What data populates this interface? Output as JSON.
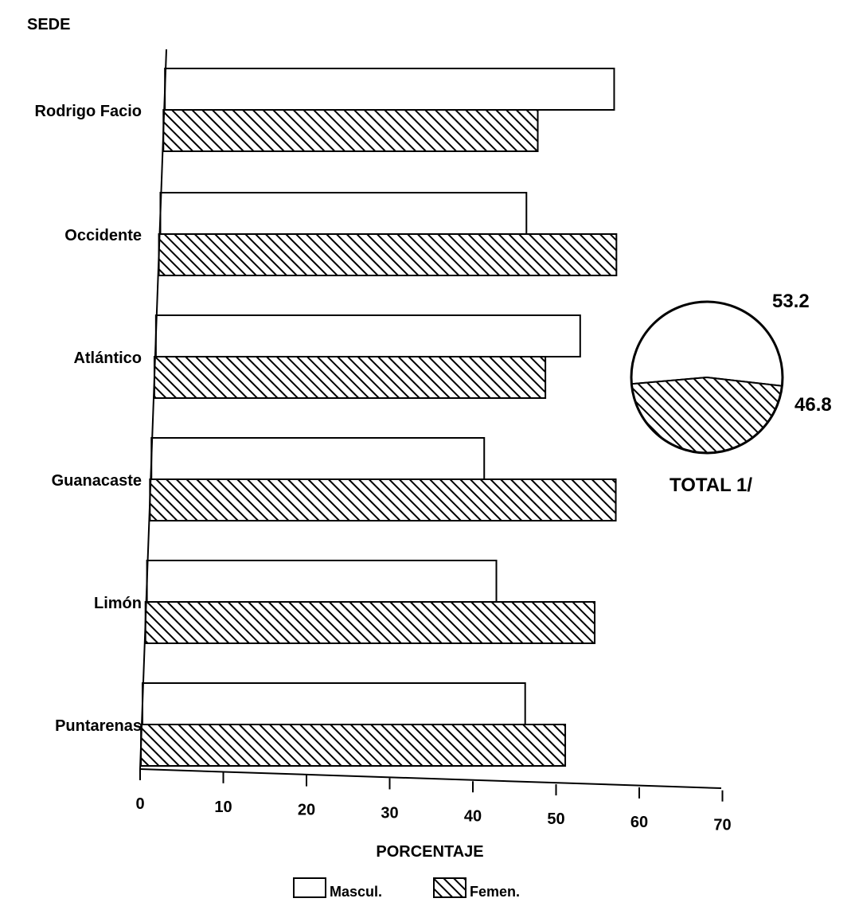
{
  "chart_data": [
    {
      "type": "bar",
      "orientation": "horizontal",
      "ylabel": "SEDE",
      "xlabel": "PORCENTAJE",
      "categories": [
        "Rodrigo Facio",
        "Occidente",
        "Atlántico",
        "Guanacaste",
        "Limón",
        "Puntarenas"
      ],
      "series": [
        {
          "name": "Mascul.",
          "values": [
            54,
            44,
            51,
            40,
            42,
            46
          ],
          "fill": "white"
        },
        {
          "name": "Femen.",
          "values": [
            45,
            55,
            47,
            56,
            54,
            51
          ],
          "fill": "hatch"
        }
      ],
      "xlim": [
        0,
        70
      ],
      "xticks": [
        0,
        10,
        20,
        30,
        40,
        50,
        60,
        70
      ],
      "grid": false,
      "legend": "bottom"
    },
    {
      "type": "pie",
      "title": "TOTAL 1/",
      "slices": [
        {
          "label": "53.2",
          "value": 53.2,
          "fill": "white"
        },
        {
          "label": "46.8",
          "value": 46.8,
          "fill": "hatch"
        }
      ]
    }
  ],
  "colors": {
    "ink": "#000000",
    "paper": "#ffffff"
  }
}
